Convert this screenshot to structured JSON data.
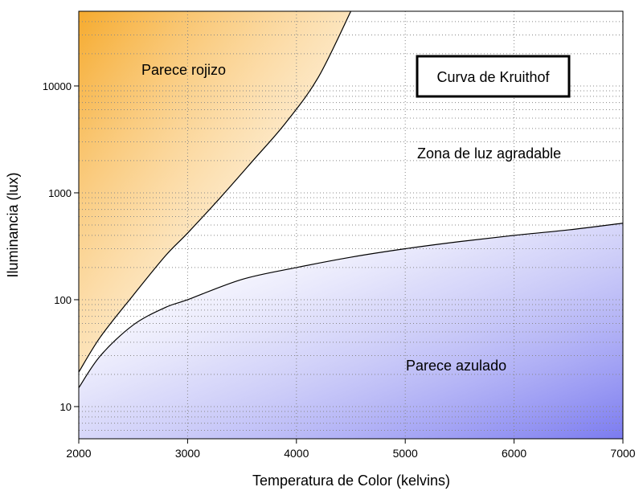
{
  "chart_data": {
    "type": "line",
    "title": "Curva de Kruithof",
    "xlabel": "Temperatura de Color (kelvins)",
    "ylabel": "Iluminancia (lux)",
    "xlim": [
      2000,
      7000
    ],
    "ylim": [
      5,
      50000
    ],
    "yscale": "log",
    "grid": true,
    "x_ticks": [
      2000,
      3000,
      4000,
      5000,
      6000,
      7000
    ],
    "y_ticks": [
      10,
      100,
      1000,
      10000
    ],
    "series": [
      {
        "points": [
          [
            2000,
            21
          ],
          [
            2200,
            45
          ],
          [
            2500,
            110
          ],
          [
            2800,
            260
          ],
          [
            3000,
            420
          ],
          [
            3300,
            900
          ],
          [
            3600,
            2000
          ],
          [
            3900,
            4500
          ],
          [
            4200,
            12000
          ],
          [
            4500,
            50000
          ]
        ]
      },
      {
        "points": [
          [
            2000,
            15
          ],
          [
            2200,
            30
          ],
          [
            2500,
            58
          ],
          [
            2800,
            85
          ],
          [
            3000,
            100
          ],
          [
            3500,
            155
          ],
          [
            4000,
            200
          ],
          [
            4500,
            250
          ],
          [
            5000,
            300
          ],
          [
            5500,
            350
          ],
          [
            6000,
            400
          ],
          [
            6500,
            450
          ],
          [
            7000,
            520
          ]
        ]
      }
    ],
    "regions": [
      {
        "label": "Parece rojizo",
        "color": "#f5a623"
      },
      {
        "label": "Zona de luz agradable",
        "color": "#ffffff"
      },
      {
        "label": "Parece azulado",
        "color": "#7b7bf0"
      }
    ]
  }
}
